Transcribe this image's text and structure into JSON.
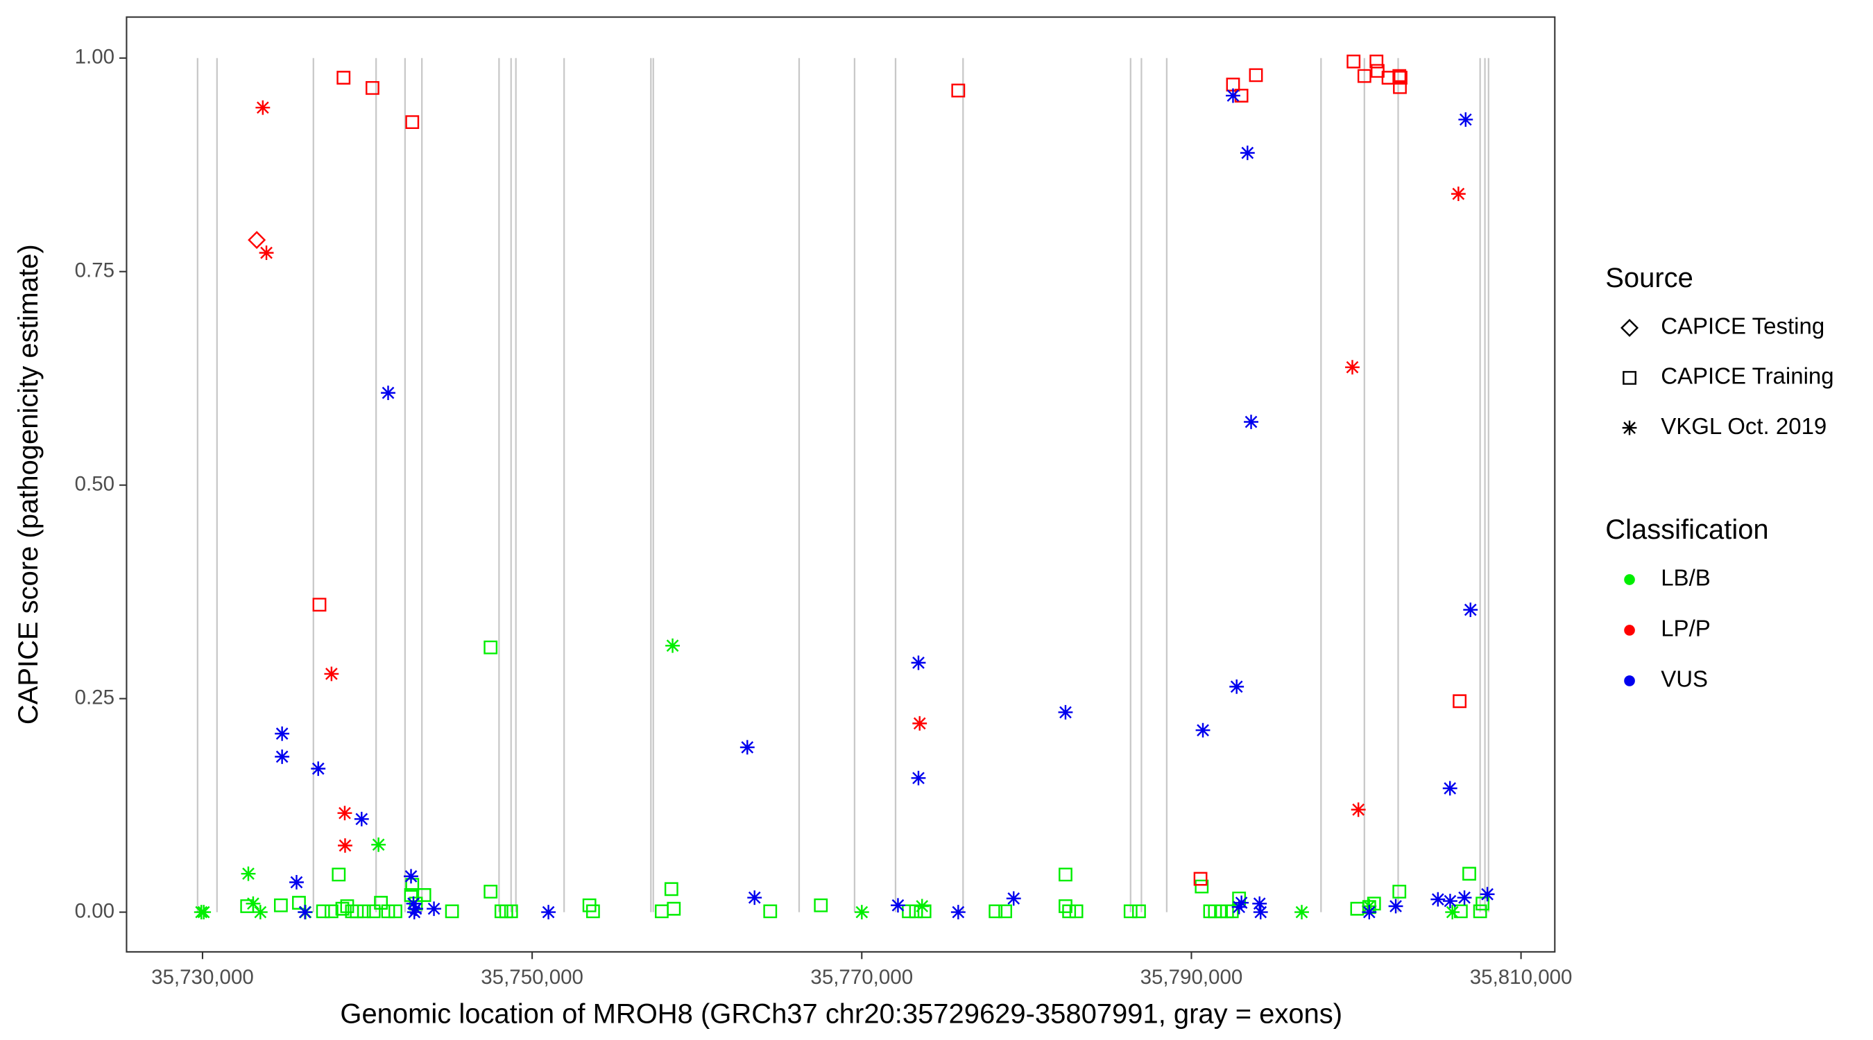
{
  "chart_data": {
    "type": "scatter",
    "x_label": "Genomic location of MROH8 (GRCh37 chr20:35729629-35807991, gray = exons)",
    "y_label": "CAPICE score (pathogenicity estimate)",
    "xlim": [
      35725390,
      35812050
    ],
    "ylim": [
      -0.0465,
      1.048
    ],
    "xticks": [
      {
        "value": 35730000,
        "label": "35,730,000"
      },
      {
        "value": 35750000,
        "label": "35,750,000"
      },
      {
        "value": 35770000,
        "label": "35,770,000"
      },
      {
        "value": 35790000,
        "label": "35,790,000"
      },
      {
        "value": 35810000,
        "label": "35,810,000"
      }
    ],
    "yticks": [
      {
        "value": 0,
        "label": "0.00"
      },
      {
        "value": 0.25,
        "label": "0.25"
      },
      {
        "value": 0.5,
        "label": "0.50"
      },
      {
        "value": 0.75,
        "label": "0.75"
      },
      {
        "value": 1,
        "label": "1.00"
      }
    ],
    "exon_color": "#c8c8c8",
    "exons": [
      35729700,
      35730878,
      35736728,
      35740531,
      35742286,
      35743310,
      35747990,
      35748721,
      35749014,
      35751939,
      35757204,
      35757351,
      35766199,
      35769563,
      35772050,
      35776145,
      35786310,
      35786968,
      35788504,
      35797865,
      35800497,
      35802545,
      35807518,
      35807810,
      35808030
    ],
    "source_title": "Source",
    "sources": [
      {
        "name": "CAPICE Testing",
        "shape": "diamond"
      },
      {
        "name": "CAPICE Training",
        "shape": "square"
      },
      {
        "name": "VKGL Oct. 2019",
        "shape": "asterisk"
      }
    ],
    "classification_title": "Classification",
    "classifications": [
      {
        "name": "LB/B",
        "color": "#00ee00"
      },
      {
        "name": "LP/P",
        "color": "#ff0000"
      },
      {
        "name": "VUS",
        "color": "#0000ee"
      }
    ],
    "series": [
      {
        "source": "CAPICE Training",
        "classification": "LB/B",
        "x": [
          35732706,
          35734753,
          35735850,
          35737313,
          35737825,
          35738264,
          35738483,
          35738776,
          35739068,
          35739361,
          35739799,
          35740384,
          35740823,
          35741262,
          35741701,
          35742651,
          35742725,
          35742944,
          35743456,
          35745138,
          35747478,
          35747478,
          35748136,
          35748429,
          35748721,
          35753475,
          35753694,
          35757863,
          35758448,
          35758594,
          35764444,
          35767516,
          35772854,
          35773293,
          35773805,
          35778120,
          35778705,
          35782361,
          35782361,
          35782581,
          35783019,
          35786310,
          35786822,
          35790625,
          35791137,
          35791429,
          35791795,
          35792160,
          35792453,
          35792892,
          35800059,
          35800790,
          35801082,
          35802618,
          35806348,
          35806860,
          35807518,
          35807664
        ],
        "values": [
          0.007,
          0.008,
          0.011,
          0.001,
          0.001,
          0.044,
          0.004,
          0.007,
          0.001,
          0.001,
          0.001,
          0.001,
          0.011,
          0.001,
          0.001,
          0.02,
          0.032,
          0.01,
          0.02,
          0.001,
          0.31,
          0.024,
          0.001,
          0.001,
          0.001,
          0.008,
          0.001,
          0.001,
          0.027,
          0.004,
          0.001,
          0.008,
          0.001,
          0.001,
          0.001,
          0.001,
          0.001,
          0.044,
          0.007,
          0.001,
          0.001,
          0.001,
          0.001,
          0.03,
          0.001,
          0.001,
          0.001,
          0.001,
          0.001,
          0.016,
          0.004,
          0.006,
          0.01,
          0.024,
          0.001,
          0.045,
          0.001,
          0.01
        ]
      },
      {
        "source": "VKGL Oct. 2019",
        "classification": "LB/B",
        "x": [
          35729927,
          35730073,
          35732779,
          35733071,
          35733510,
          35740677,
          35736250,
          35758521,
          35770002,
          35773659,
          35796695,
          35800790,
          35805836
        ],
        "values": [
          0,
          0,
          0.045,
          0.01,
          0,
          0.079,
          0,
          0.312,
          0,
          0.007,
          0,
          0.007,
          0
        ]
      },
      {
        "source": "CAPICE Testing",
        "classification": "LP/P",
        "x": [
          35733291
        ],
        "values": [
          0.787
        ]
      },
      {
        "source": "CAPICE Training",
        "classification": "LP/P",
        "x": [
          35738556,
          35740311,
          35742725,
          35737094,
          35775853,
          35790552,
          35792526,
          35793038,
          35793916,
          35799839,
          35800497,
          35801229,
          35801300,
          35801960,
          35802618,
          35802690,
          35802650,
          35806275
        ],
        "values": [
          0.977,
          0.965,
          0.925,
          0.36,
          0.962,
          0.039,
          0.969,
          0.956,
          0.98,
          0.996,
          0.979,
          0.996,
          0.985,
          0.977,
          0.979,
          0.977,
          0.966,
          0.247
        ]
      },
      {
        "source": "VKGL Oct. 2019",
        "classification": "LP/P",
        "x": [
          35733657,
          35733876,
          35737825,
          35738629,
          35738650,
          35773512,
          35799766,
          35800132,
          35806201
        ],
        "values": [
          0.942,
          0.772,
          0.279,
          0.116,
          0.078,
          0.221,
          0.638,
          0.12,
          0.841
        ]
      },
      {
        "source": "VKGL Oct. 2019",
        "classification": "VUS",
        "x": [
          35734827,
          35734827,
          35737020,
          35735704,
          35736216,
          35739653,
          35741262,
          35742651,
          35742798,
          35742850,
          35742944,
          35744041,
          35750988,
          35763055,
          35763494,
          35772196,
          35773439,
          35773439,
          35775853,
          35779216,
          35782361,
          35790698,
          35792746,
          35792526,
          35793404,
          35793623,
          35792892,
          35793038,
          35794135,
          35794200,
          35800790,
          35802399,
          35804958,
          35805690,
          35805700,
          35806640,
          35806933,
          35806567,
          35807957
        ],
        "values": [
          0.209,
          0.182,
          0.168,
          0.035,
          0,
          0.109,
          0.608,
          0.042,
          0.01,
          0,
          0.004,
          0.004,
          0,
          0.193,
          0.017,
          0.008,
          0.292,
          0.157,
          0,
          0.016,
          0.234,
          0.213,
          0.264,
          0.956,
          0.889,
          0.574,
          0.006,
          0.011,
          0.01,
          0,
          0,
          0.007,
          0.015,
          0.145,
          0.013,
          0.928,
          0.354,
          0.017,
          0.021
        ]
      }
    ]
  }
}
